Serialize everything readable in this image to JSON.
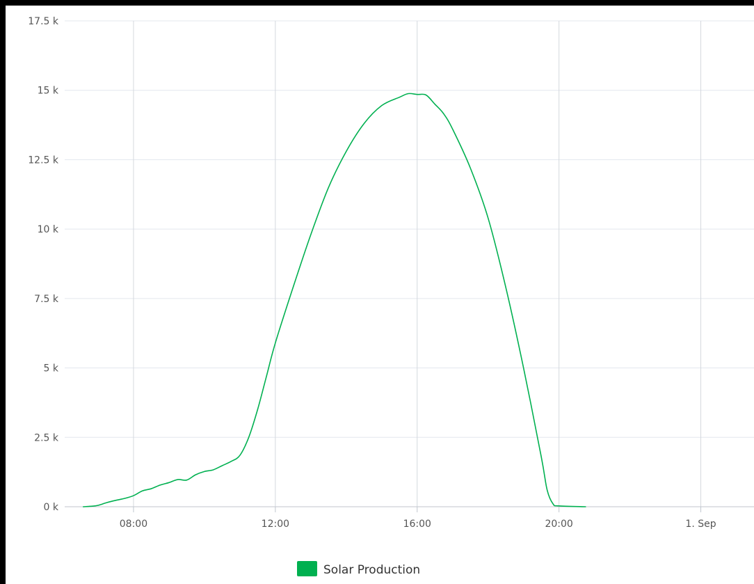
{
  "chart_data": {
    "type": "line",
    "title": "",
    "xlabel": "",
    "ylabel": "",
    "x_ticks": [
      {
        "time": "08:00",
        "label": "08:00"
      },
      {
        "time": "12:00",
        "label": "12:00"
      },
      {
        "time": "16:00",
        "label": "16:00"
      },
      {
        "time": "20:00",
        "label": "20:00"
      },
      {
        "time": "24:00",
        "label": "1. Sep"
      }
    ],
    "y_ticks": [
      {
        "value": 0,
        "label": "0 k"
      },
      {
        "value": 2500,
        "label": "2.5 k"
      },
      {
        "value": 5000,
        "label": "5 k"
      },
      {
        "value": 7500,
        "label": "7.5 k"
      },
      {
        "value": 10000,
        "label": "10 k"
      },
      {
        "value": 12500,
        "label": "12.5 k"
      },
      {
        "value": 15000,
        "label": "15 k"
      },
      {
        "value": 17500,
        "label": "17.5 k"
      }
    ],
    "ylim": [
      0,
      17500
    ],
    "xlim": [
      "06:00",
      "25:30"
    ],
    "grid": true,
    "legend_position": "bottom-center",
    "series": [
      {
        "name": "Solar Production",
        "color": "#00b050",
        "points": [
          [
            "06:35",
            0
          ],
          [
            "06:50",
            20
          ],
          [
            "07:00",
            50
          ],
          [
            "07:15",
            150
          ],
          [
            "07:30",
            230
          ],
          [
            "07:45",
            300
          ],
          [
            "08:00",
            400
          ],
          [
            "08:15",
            570
          ],
          [
            "08:30",
            650
          ],
          [
            "08:45",
            780
          ],
          [
            "09:00",
            870
          ],
          [
            "09:15",
            980
          ],
          [
            "09:30",
            960
          ],
          [
            "09:45",
            1150
          ],
          [
            "10:00",
            1270
          ],
          [
            "10:15",
            1330
          ],
          [
            "10:30",
            1480
          ],
          [
            "10:45",
            1630
          ],
          [
            "11:00",
            1850
          ],
          [
            "11:15",
            2500
          ],
          [
            "11:30",
            3500
          ],
          [
            "11:45",
            4700
          ],
          [
            "12:00",
            5900
          ],
          [
            "12:30",
            7900
          ],
          [
            "13:00",
            9800
          ],
          [
            "13:30",
            11500
          ],
          [
            "14:00",
            12800
          ],
          [
            "14:30",
            13800
          ],
          [
            "15:00",
            14450
          ],
          [
            "15:30",
            14750
          ],
          [
            "15:45",
            14880
          ],
          [
            "16:00",
            14850
          ],
          [
            "16:15",
            14830
          ],
          [
            "16:30",
            14500
          ],
          [
            "16:45",
            14150
          ],
          [
            "17:00",
            13600
          ],
          [
            "17:30",
            12200
          ],
          [
            "18:00",
            10400
          ],
          [
            "18:30",
            7900
          ],
          [
            "19:00",
            5000
          ],
          [
            "19:30",
            1800
          ],
          [
            "19:40",
            600
          ],
          [
            "19:50",
            100
          ],
          [
            "20:00",
            30
          ],
          [
            "20:45",
            0
          ]
        ]
      }
    ]
  }
}
